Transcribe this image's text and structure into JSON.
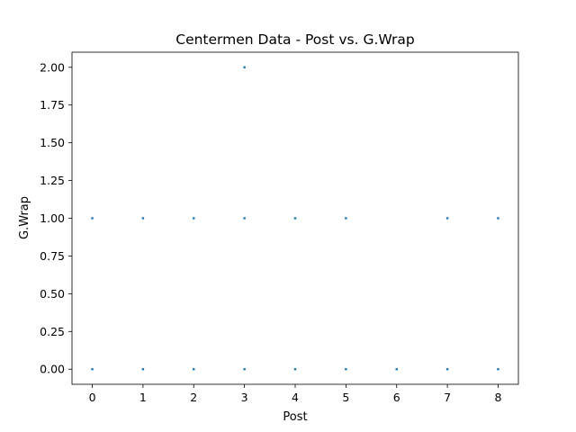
{
  "chart_data": {
    "type": "scatter",
    "title": "Centermen Data - Post vs. G.Wrap",
    "xlabel": "Post",
    "ylabel": "G.Wrap",
    "xlim": [
      -0.4,
      8.4
    ],
    "ylim": [
      -0.1,
      2.1
    ],
    "xticks": [
      "0",
      "1",
      "2",
      "3",
      "4",
      "5",
      "6",
      "7",
      "8"
    ],
    "yticks": [
      "0.00",
      "0.25",
      "0.50",
      "0.75",
      "1.00",
      "1.25",
      "1.50",
      "1.75",
      "2.00"
    ],
    "grid": false,
    "marker_color": "#1f77b4",
    "points": [
      {
        "x": 0,
        "y": 0
      },
      {
        "x": 1,
        "y": 0
      },
      {
        "x": 2,
        "y": 0
      },
      {
        "x": 3,
        "y": 0
      },
      {
        "x": 4,
        "y": 0
      },
      {
        "x": 5,
        "y": 0
      },
      {
        "x": 6,
        "y": 0
      },
      {
        "x": 7,
        "y": 0
      },
      {
        "x": 8,
        "y": 0
      },
      {
        "x": 0,
        "y": 1
      },
      {
        "x": 1,
        "y": 1
      },
      {
        "x": 2,
        "y": 1
      },
      {
        "x": 3,
        "y": 1
      },
      {
        "x": 4,
        "y": 1
      },
      {
        "x": 5,
        "y": 1
      },
      {
        "x": 7,
        "y": 1
      },
      {
        "x": 8,
        "y": 1
      },
      {
        "x": 3,
        "y": 2
      }
    ]
  }
}
